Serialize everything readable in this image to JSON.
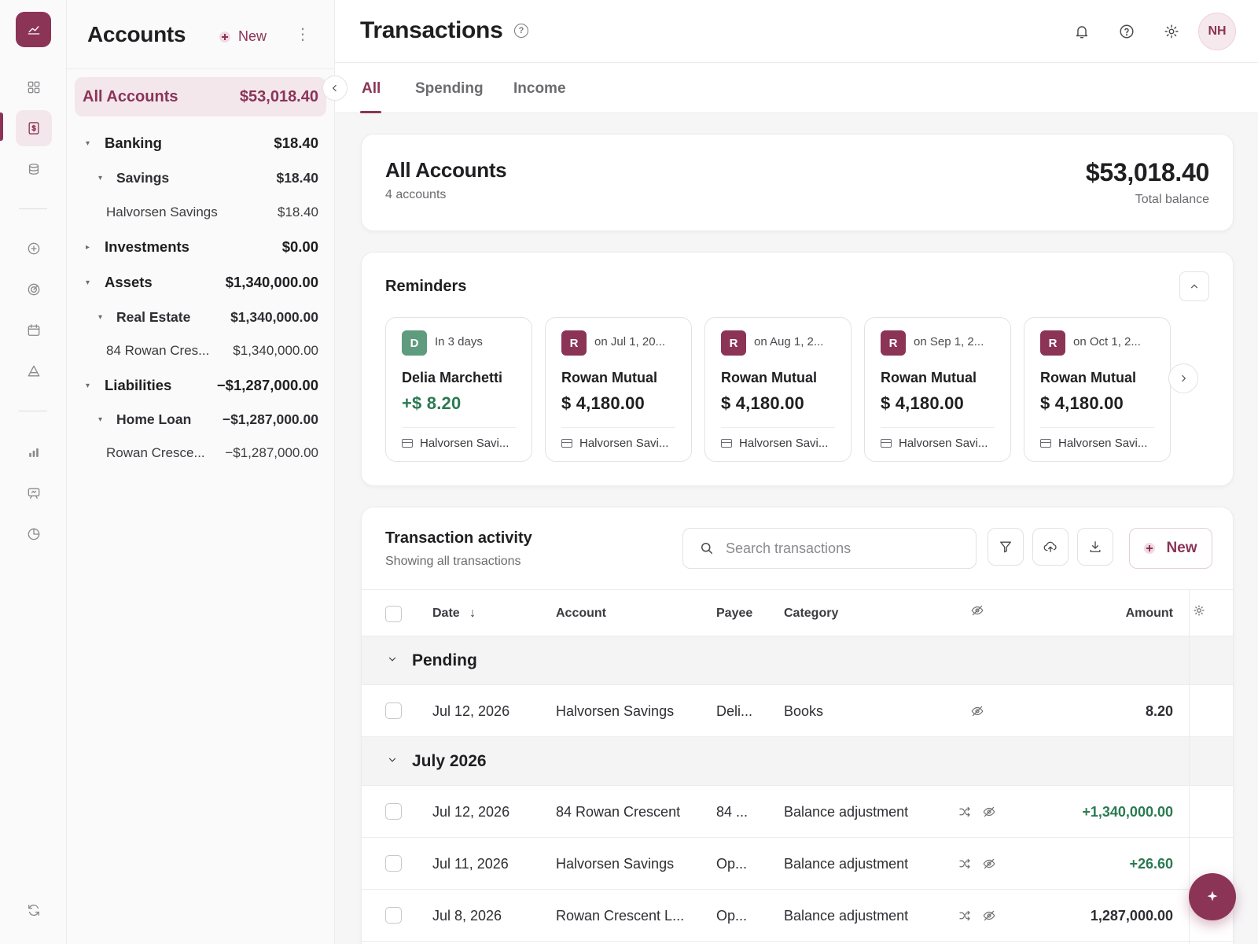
{
  "colors": {
    "accent": "#8b3456",
    "accent_soft": "#f3e7ec",
    "positive": "#2a7a52",
    "badge_green": "#5f9b7d"
  },
  "rail": {
    "items": [
      "logo-icon",
      "dashboard-icon",
      "transactions-icon",
      "accounts-icon",
      "add-icon",
      "goals-icon",
      "calendar-icon",
      "forecast-icon",
      "reports-icon",
      "feedback-icon",
      "analytics-icon",
      "sync-icon"
    ]
  },
  "accounts_panel": {
    "title": "Accounts",
    "new_label": "New",
    "more_label": "⋮",
    "all_accounts": {
      "label": "All Accounts",
      "amount": "$53,018.40"
    },
    "tree": [
      {
        "label": "Banking",
        "amount": "$18.40",
        "level": 0,
        "caret": "▾"
      },
      {
        "label": "Savings",
        "amount": "$18.40",
        "level": 1,
        "caret": "▾"
      },
      {
        "label": "Halvorsen Savings",
        "amount": "$18.40",
        "level": 2
      },
      {
        "label": "Investments",
        "amount": "$0.00",
        "level": 0,
        "caret": "▸"
      },
      {
        "label": "Assets",
        "amount": "$1,340,000.00",
        "level": 0,
        "caret": "▾"
      },
      {
        "label": "Real Estate",
        "amount": "$1,340,000.00",
        "level": 1,
        "caret": "▾"
      },
      {
        "label": "84 Rowan Cres...",
        "amount": "$1,340,000.00",
        "level": 2
      },
      {
        "label": "Liabilities",
        "amount": "−$1,287,000.00",
        "level": 0,
        "caret": "▾"
      },
      {
        "label": "Home Loan",
        "amount": "−$1,287,000.00",
        "level": 1,
        "caret": "▾"
      },
      {
        "label": "Rowan Cresce...",
        "amount": "−$1,287,000.00",
        "level": 2
      }
    ]
  },
  "header": {
    "title": "Transactions",
    "help": "?",
    "avatar_initials": "NH"
  },
  "tabs": [
    {
      "label": "All",
      "active": true
    },
    {
      "label": "Spending",
      "active": false
    },
    {
      "label": "Income",
      "active": false
    }
  ],
  "summary": {
    "title": "All Accounts",
    "subtitle": "4 accounts",
    "total": "$53,018.40",
    "total_label": "Total balance"
  },
  "reminders": {
    "title": "Reminders",
    "items": [
      {
        "initial": "D",
        "when": "In 3 days",
        "payee": "Delia Marchetti",
        "amount": "+$ 8.20",
        "positive": true,
        "account": "Halvorsen Savi..."
      },
      {
        "initial": "R",
        "when": "on Jul 1, 20...",
        "payee": "Rowan Mutual",
        "amount": "$ 4,180.00",
        "positive": false,
        "account": "Halvorsen Savi..."
      },
      {
        "initial": "R",
        "when": "on Aug 1, 2...",
        "payee": "Rowan Mutual",
        "amount": "$ 4,180.00",
        "positive": false,
        "account": "Halvorsen Savi..."
      },
      {
        "initial": "R",
        "when": "on Sep 1, 2...",
        "payee": "Rowan Mutual",
        "amount": "$ 4,180.00",
        "positive": false,
        "account": "Halvorsen Savi..."
      },
      {
        "initial": "R",
        "when": "on Oct 1, 2...",
        "payee": "Rowan Mutual",
        "amount": "$ 4,180.00",
        "positive": false,
        "account": "Halvorsen Savi..."
      }
    ]
  },
  "activity": {
    "title": "Transaction activity",
    "subtitle": "Showing all transactions",
    "search_placeholder": "Search transactions",
    "new_label": "New",
    "columns": {
      "date": "Date",
      "date_sort": "↓",
      "account": "Account",
      "payee": "Payee",
      "category": "Category",
      "amount": "Amount"
    },
    "groups": [
      {
        "label": "Pending",
        "rows": [
          {
            "date": "Jul 12, 2026",
            "account": "Halvorsen Savings",
            "payee": "Deli...",
            "category": "Books",
            "transfer": false,
            "amount": "8.20",
            "positive": false
          }
        ]
      },
      {
        "label": "July 2026",
        "rows": [
          {
            "date": "Jul 12, 2026",
            "account": "84 Rowan Crescent",
            "payee": "84 ...",
            "category": "Balance adjustment",
            "transfer": true,
            "amount": "+1,340,000.00",
            "positive": true
          },
          {
            "date": "Jul 11, 2026",
            "account": "Halvorsen Savings",
            "payee": "Op...",
            "category": "Balance adjustment",
            "transfer": true,
            "amount": "+26.60",
            "positive": true
          },
          {
            "date": "Jul 8, 2026",
            "account": "Rowan Crescent L...",
            "payee": "Op...",
            "category": "Balance adjustment",
            "transfer": true,
            "amount": "1,287,000.00",
            "positive": false
          }
        ]
      }
    ]
  }
}
